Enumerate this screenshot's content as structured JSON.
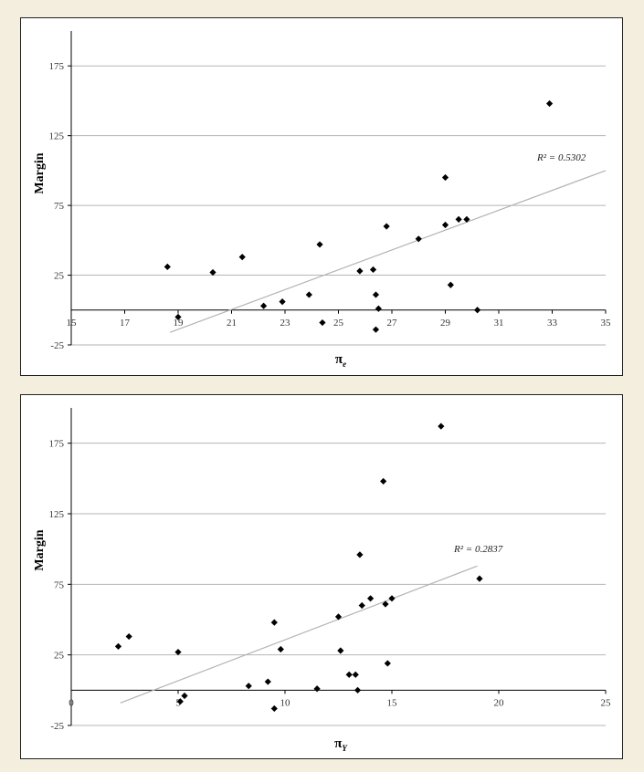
{
  "chart_data": [
    {
      "type": "scatter",
      "ylabel": "Margin",
      "xlabel_main": "π",
      "xlabel_sub": "e",
      "annotation": "R² = 0.5302",
      "xlim": [
        15,
        35
      ],
      "ylim": [
        -25,
        200
      ],
      "xticks": [
        15,
        17,
        19,
        21,
        23,
        25,
        27,
        29,
        31,
        33,
        35
      ],
      "yticks": [
        -25,
        25,
        75,
        125,
        175
      ],
      "grid": true,
      "trendline": {
        "x": [
          18.7,
          35
        ],
        "y": [
          -16,
          100
        ]
      },
      "points": [
        {
          "x": 18.6,
          "y": 31
        },
        {
          "x": 19.0,
          "y": -5
        },
        {
          "x": 20.3,
          "y": 27
        },
        {
          "x": 21.4,
          "y": 38
        },
        {
          "x": 22.2,
          "y": 3
        },
        {
          "x": 22.9,
          "y": 6
        },
        {
          "x": 23.9,
          "y": 11
        },
        {
          "x": 24.3,
          "y": 47
        },
        {
          "x": 24.4,
          "y": -9
        },
        {
          "x": 25.8,
          "y": 28
        },
        {
          "x": 26.3,
          "y": 29
        },
        {
          "x": 26.4,
          "y": 11
        },
        {
          "x": 26.4,
          "y": -14
        },
        {
          "x": 26.5,
          "y": 1
        },
        {
          "x": 26.8,
          "y": 60
        },
        {
          "x": 28.0,
          "y": 51
        },
        {
          "x": 29.0,
          "y": 61
        },
        {
          "x": 29.0,
          "y": 95
        },
        {
          "x": 29.2,
          "y": 18
        },
        {
          "x": 29.5,
          "y": 65
        },
        {
          "x": 29.8,
          "y": 65
        },
        {
          "x": 30.2,
          "y": 0
        },
        {
          "x": 32.9,
          "y": 148
        }
      ]
    },
    {
      "type": "scatter",
      "ylabel": "Margin",
      "xlabel_main": "π",
      "xlabel_sub": "Y",
      "annotation": "R² = 0.2837",
      "xlim": [
        0,
        25
      ],
      "ylim": [
        -25,
        200
      ],
      "xticks": [
        0,
        5,
        10,
        15,
        20,
        25
      ],
      "yticks": [
        -25,
        25,
        75,
        125,
        175
      ],
      "grid": true,
      "trendline": {
        "x": [
          2.3,
          19.0
        ],
        "y": [
          -9,
          88
        ]
      },
      "points": [
        {
          "x": 2.2,
          "y": 31
        },
        {
          "x": 2.7,
          "y": 38
        },
        {
          "x": 5.0,
          "y": 27
        },
        {
          "x": 5.1,
          "y": -8
        },
        {
          "x": 5.3,
          "y": -4
        },
        {
          "x": 8.3,
          "y": 3
        },
        {
          "x": 9.2,
          "y": 6
        },
        {
          "x": 9.5,
          "y": 48
        },
        {
          "x": 9.5,
          "y": -13
        },
        {
          "x": 9.8,
          "y": 29
        },
        {
          "x": 11.5,
          "y": 1
        },
        {
          "x": 12.5,
          "y": 52
        },
        {
          "x": 12.6,
          "y": 28
        },
        {
          "x": 13.0,
          "y": 11
        },
        {
          "x": 13.3,
          "y": 11
        },
        {
          "x": 13.4,
          "y": 0
        },
        {
          "x": 13.5,
          "y": 96
        },
        {
          "x": 13.6,
          "y": 60
        },
        {
          "x": 14.0,
          "y": 65
        },
        {
          "x": 14.6,
          "y": 148
        },
        {
          "x": 14.7,
          "y": 61
        },
        {
          "x": 14.8,
          "y": 19
        },
        {
          "x": 15.0,
          "y": 65
        },
        {
          "x": 17.3,
          "y": 187
        },
        {
          "x": 19.1,
          "y": 79
        }
      ]
    }
  ]
}
